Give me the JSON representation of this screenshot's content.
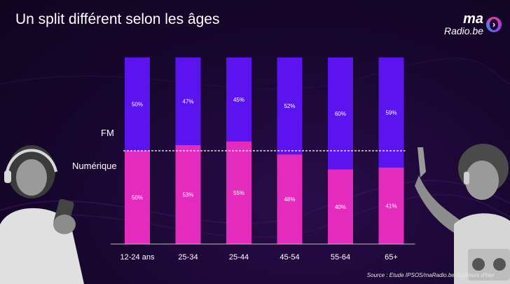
{
  "title": "Un split différent selon les âges",
  "logo": {
    "line1": "ma",
    "line2": "Radio.be"
  },
  "labels": {
    "fm": "FM",
    "numerique": "Numérique"
  },
  "source": "Source : Etude IPSOS/maRadio.be Auditeurs d'hier",
  "colors": {
    "fm": "#5b14f0",
    "numerique": "#e52bbd",
    "divider": "#ffffff"
  },
  "chart_data": {
    "type": "bar",
    "stacked": true,
    "categories": [
      "12-24 ans",
      "25-34",
      "25-44",
      "45-54",
      "55-64",
      "65+"
    ],
    "series": [
      {
        "name": "Numérique",
        "values": [
          50,
          53,
          55,
          48,
          40,
          41
        ],
        "labels": [
          "50%",
          "53%",
          "55%",
          "48%",
          "40%",
          "41%"
        ]
      },
      {
        "name": "FM",
        "values": [
          50,
          47,
          45,
          52,
          60,
          59
        ],
        "labels": [
          "50%",
          "47%",
          "45%",
          "52%",
          "60%",
          "59%"
        ]
      }
    ],
    "ylim": [
      0,
      100
    ],
    "reference_line": 50
  }
}
